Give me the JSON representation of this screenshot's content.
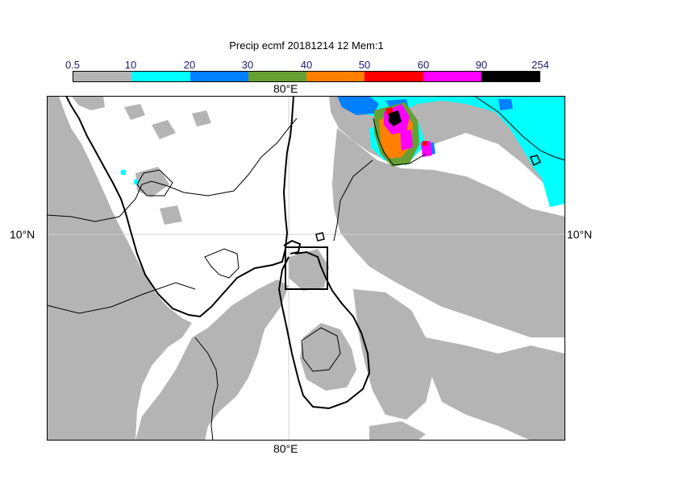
{
  "title": "Precip ecmf 20181214 12 Mem:1",
  "colorbar": {
    "ticks": [
      "0.5",
      "10",
      "20",
      "30",
      "40",
      "50",
      "60",
      "90",
      "254"
    ],
    "colors": [
      "#b4b4b4",
      "#00ffff",
      "#0080ff",
      "#66a033",
      "#ff8000",
      "#ff0000",
      "#ff00ff",
      "#000000"
    ]
  },
  "map": {
    "lon_label_top": "80°E",
    "lon_label_bottom": "80°E",
    "lat_label_left": "10°N",
    "lat_label_right": "10°N",
    "background": "#ffffff",
    "coast_color": "#000000"
  }
}
